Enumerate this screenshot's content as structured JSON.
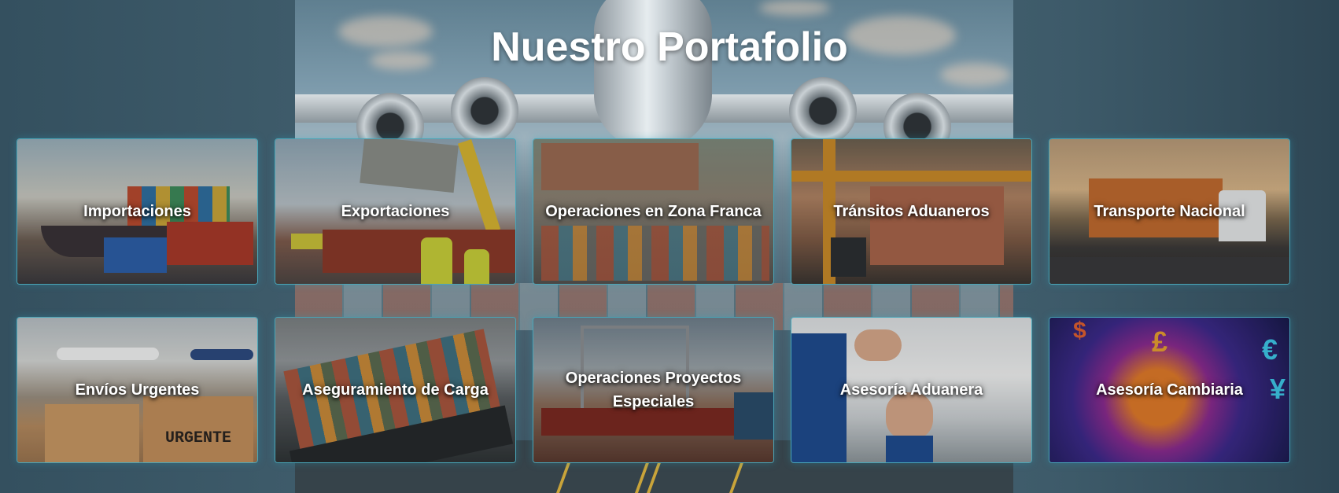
{
  "page": {
    "title": "Nuestro Portafolio"
  },
  "services": [
    {
      "label": "Importaciones"
    },
    {
      "label": "Exportaciones"
    },
    {
      "label": "Operaciones en Zona Franca"
    },
    {
      "label": "Tránsitos Aduaneros"
    },
    {
      "label": "Transporte Nacional"
    },
    {
      "label": "Envíos Urgentes"
    },
    {
      "label": "Aseguramiento de Carga"
    },
    {
      "label": "Operaciones Proyectos Especiales"
    },
    {
      "label": "Asesoría Aduanera"
    },
    {
      "label": "Asesoría Cambiaria"
    }
  ],
  "images": {
    "envios_box_text": "URGENTE",
    "cambiaria_symbols": [
      "£",
      "€",
      "¥",
      "$"
    ]
  },
  "colors": {
    "card_border": "#4aa6b8",
    "title_text": "#ffffff"
  }
}
